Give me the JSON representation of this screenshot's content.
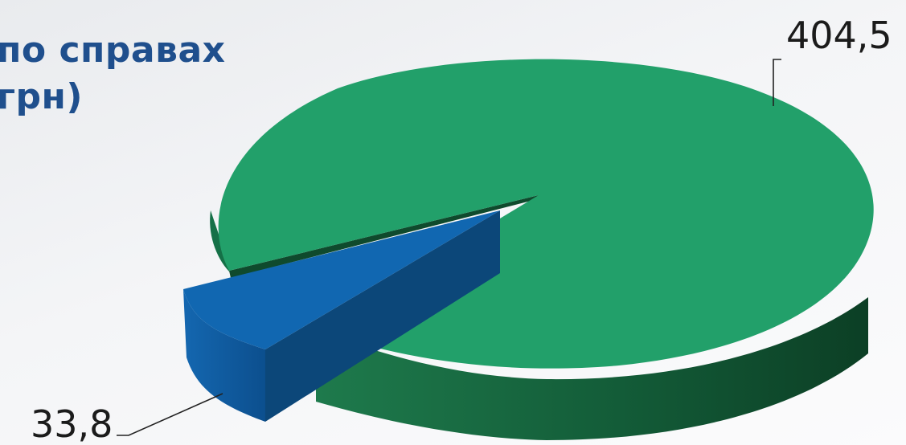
{
  "title": {
    "line1": "по справах",
    "line2": "грн)"
  },
  "chart_data": {
    "type": "pie",
    "title": "по справах грн)",
    "slices": [
      {
        "value": 404.5,
        "label": "404,5",
        "color": "#22a06a"
      },
      {
        "value": 33.8,
        "label": "33,8",
        "color": "#1167b1"
      }
    ],
    "exploded": [
      false,
      true
    ],
    "legend": false
  }
}
